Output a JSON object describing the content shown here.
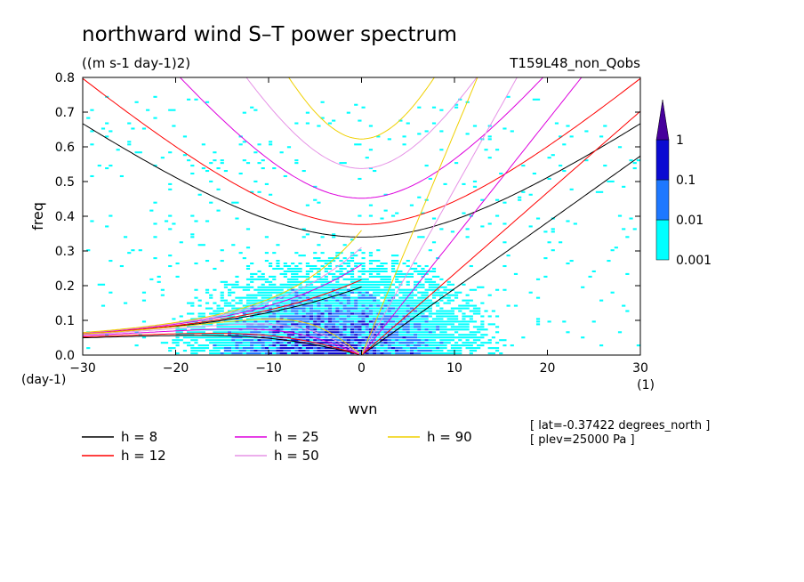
{
  "chart_data": {
    "type": "heatmap",
    "title": "northward wind S–T power spectrum",
    "units": "((m s-1 day-1)2)",
    "run_label": "T159L48_non_Qobs",
    "xlabel": "wvn",
    "ylabel": "freq",
    "xunit": "(1)",
    "yunit": "(day-1)",
    "xlim": [
      -30,
      30
    ],
    "ylim": [
      0,
      0.8
    ],
    "xticks": [
      -30,
      -20,
      -10,
      0,
      10,
      20,
      30
    ],
    "yticks": [
      0.0,
      0.1,
      0.2,
      0.3,
      0.4,
      0.5,
      0.6,
      0.7,
      0.8
    ],
    "grid": false,
    "colorbar": {
      "levels": [
        "0.001",
        "0.01",
        "0.1",
        "1"
      ],
      "colors": [
        "#00ffff",
        "#1e78ff",
        "#0a0ad2",
        "#46009b"
      ]
    },
    "heatmap_summary": {
      "description": "power concentrated at low frequency near wvn -5..0",
      "regions": [
        {
          "level": "0.001",
          "x_range": [
            -28,
            20
          ],
          "freq_range": [
            0.0,
            0.45
          ]
        },
        {
          "level": "0.01",
          "x_range": [
            -12,
            6
          ],
          "freq_range": [
            0.0,
            0.22
          ]
        },
        {
          "level": "0.1",
          "x_range": [
            -6,
            2
          ],
          "freq_range": [
            0.0,
            0.08
          ]
        }
      ]
    },
    "series": [
      {
        "name": "h = 8",
        "h": 8,
        "color": "#000000"
      },
      {
        "name": "h = 12",
        "h": 12,
        "color": "#ff0000"
      },
      {
        "name": "h = 25",
        "h": 25,
        "color": "#dd00dd"
      },
      {
        "name": "h = 50",
        "h": 50,
        "color": "#e693e6"
      },
      {
        "name": "h = 90",
        "h": 90,
        "color": "#f0d000"
      }
    ],
    "info": {
      "lat": "[ lat=-0.37422 degrees_north ]",
      "plev": "[ plev=25000 Pa ]"
    }
  }
}
